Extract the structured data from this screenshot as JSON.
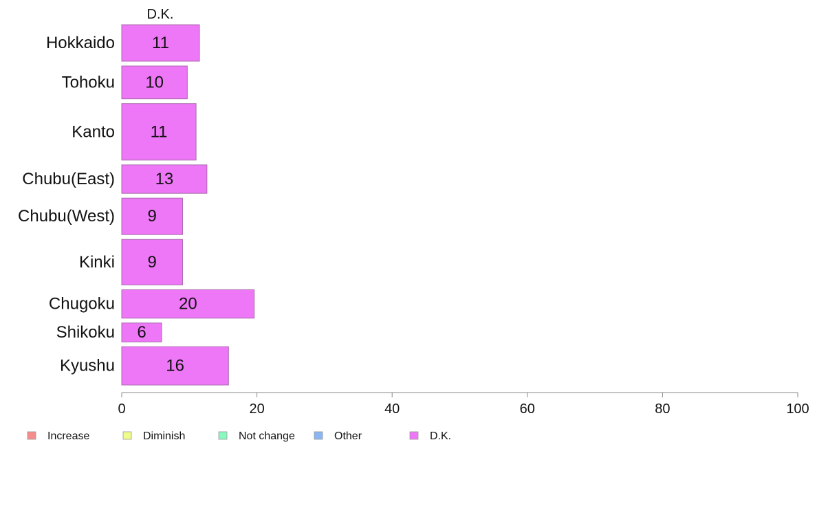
{
  "chart_data": {
    "type": "bar",
    "orientation": "horizontal",
    "column_header": "D.K.",
    "categories": [
      "Hokkaido",
      "Tohoku",
      "Kanto",
      "Chubu(East)",
      "Chubu(West)",
      "Kinki",
      "Chugoku",
      "Shikoku",
      "Kyushu"
    ],
    "bar_weights": [
      1.0,
      0.9,
      1.55,
      0.78,
      1.0,
      1.25,
      0.78,
      0.52,
      1.05
    ],
    "series": [
      {
        "name": "D.K.",
        "color": "#ee77f7",
        "values": [
          11.5,
          9.7,
          11,
          12.6,
          9,
          9,
          19.6,
          5.9,
          15.8
        ],
        "labels": [
          "11",
          "10",
          "11",
          "13",
          "9",
          "9",
          "20",
          "6",
          "16"
        ]
      }
    ],
    "xlim": [
      0,
      100
    ],
    "xticks": [
      "0",
      "20",
      "40",
      "60",
      "80",
      "100"
    ],
    "grid": false,
    "legend": {
      "placement": "bottom",
      "items": [
        {
          "label": "Increase",
          "color": "#f78c8c"
        },
        {
          "label": "Diminish",
          "color": "#eefc8a"
        },
        {
          "label": "Not change",
          "color": "#8af7bf"
        },
        {
          "label": "Other",
          "color": "#8ab7f4"
        },
        {
          "label": "D.K.",
          "color": "#ee77f7"
        }
      ]
    }
  }
}
